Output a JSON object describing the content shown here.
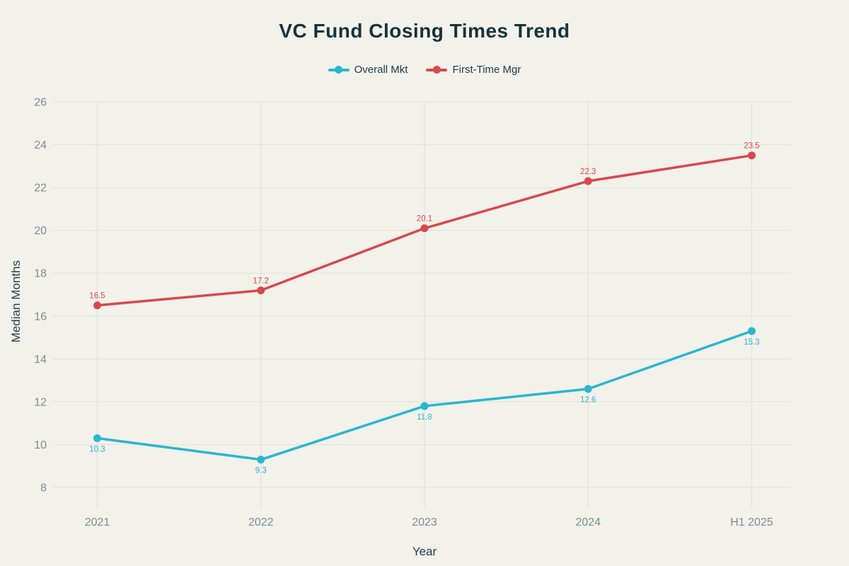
{
  "page": {
    "title": "VC Fund Closing Times Trend"
  },
  "chart_data": {
    "type": "line",
    "title": "VC Fund Closing Times Trend",
    "xlabel": "Year",
    "ylabel": "Median Months",
    "categories": [
      "2021",
      "2022",
      "2023",
      "2024",
      "H1 2025"
    ],
    "series": [
      {
        "name": "Overall Mkt",
        "color": "#29b6d0",
        "values": [
          10.3,
          9.3,
          11.8,
          12.6,
          15.3
        ],
        "point_labels": [
          "10.3",
          "9.3",
          "11.8",
          "12.6",
          "15.3"
        ],
        "label_position": "below"
      },
      {
        "name": "First-Time Mgr",
        "color": "#d8474d",
        "values": [
          16.5,
          17.2,
          20.1,
          22.3,
          23.5
        ],
        "point_labels": [
          "16.5",
          "17.2",
          "20.1",
          "22.3",
          "23.5"
        ],
        "label_position": "above"
      }
    ],
    "yticks": [
      8,
      10,
      12,
      14,
      16,
      18,
      20,
      22,
      24,
      26
    ],
    "ylim": [
      8,
      26
    ],
    "grid": true,
    "legend_position": "top"
  },
  "colors": {
    "background": "#f2f1ea",
    "title": "#16323e",
    "axis_title": "#24414e",
    "tick_label": "#7e8d94",
    "grid": "#e3e2d8"
  }
}
